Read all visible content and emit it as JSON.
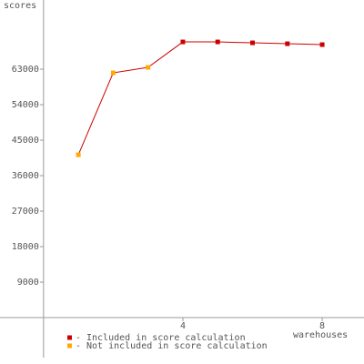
{
  "chart_data": {
    "type": "line",
    "y_label": "scores",
    "x_label": "warehouses",
    "x": [
      1,
      2,
      3,
      4,
      5,
      6,
      7,
      8
    ],
    "values": [
      41300,
      62080,
      63460,
      69920,
      69920,
      69690,
      69460,
      69230
    ],
    "included": [
      false,
      false,
      false,
      true,
      true,
      true,
      true,
      true
    ],
    "line_color": "#cc0000",
    "legend": [
      {
        "label": "Included in score calculation",
        "color": "#cc0000"
      },
      {
        "label": "Not included in score calculation",
        "color": "#ffaa00"
      }
    ],
    "xlim": [
      -1.25,
      9.2
    ],
    "ylim": [
      -10150,
      80550
    ],
    "xticks": [
      4,
      8
    ],
    "yticks": [
      9000,
      18000,
      27000,
      36000,
      45000,
      54000,
      63000
    ]
  }
}
